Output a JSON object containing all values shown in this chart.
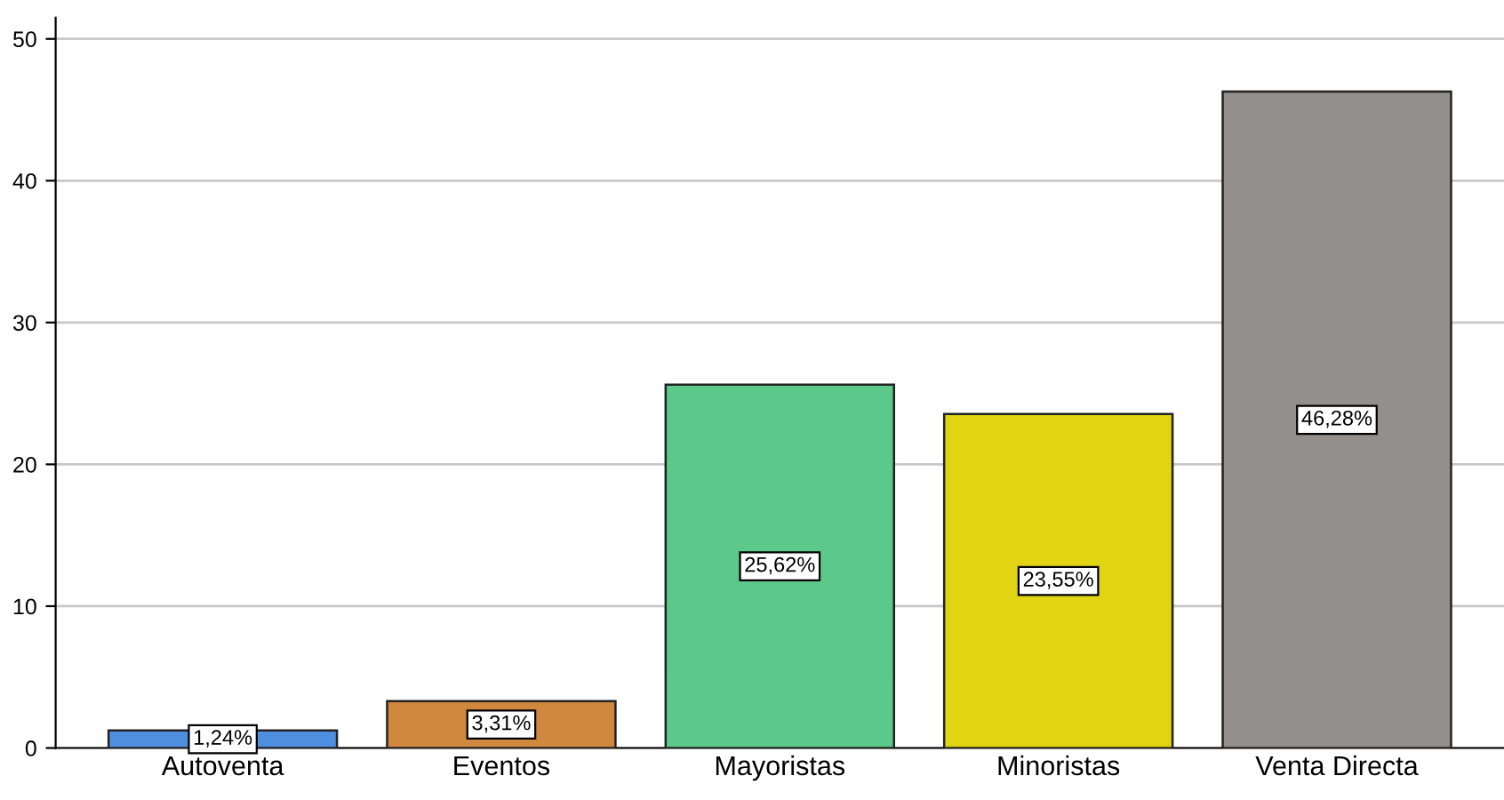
{
  "chart_data": {
    "type": "bar",
    "categories": [
      "Autoventa",
      "Eventos",
      "Mayoristas",
      "Minoristas",
      "Venta Directa"
    ],
    "values": [
      1.24,
      3.31,
      25.62,
      23.55,
      46.28
    ],
    "colors": [
      "#4f8fe0",
      "#d0873e",
      "#5cc98b",
      "#e1d412",
      "#938f8d"
    ],
    "value_labels": [
      "1,24%",
      "3,31%",
      "25,62%",
      "23,55%",
      "46,28%"
    ],
    "ylim": [
      0,
      51.5
    ],
    "yticks": [
      0,
      10,
      20,
      30,
      40,
      50
    ],
    "grid": "y"
  }
}
